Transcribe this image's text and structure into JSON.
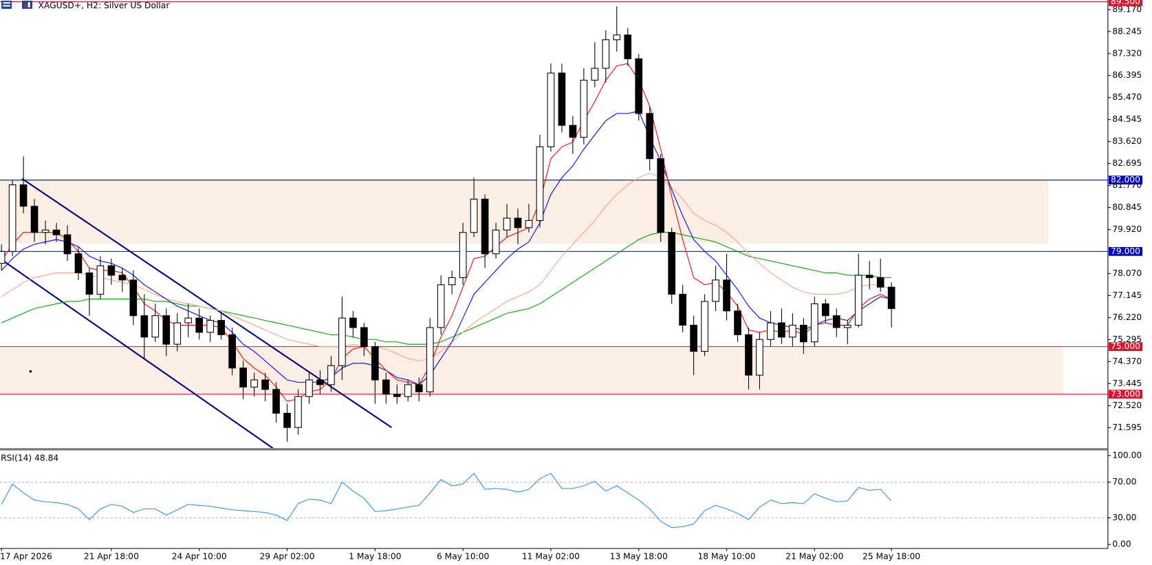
{
  "chart_data": [
    {
      "type": "candlestick",
      "title": "XAGUSD+, H2:  Silver US Dollar",
      "categories": [
        "17 Apr 2026",
        null,
        null,
        null,
        null,
        null,
        null,
        null,
        null,
        null,
        "21 Apr 18:00",
        null,
        null,
        null,
        null,
        null,
        null,
        null,
        "24 Apr 10:00",
        null,
        null,
        null,
        null,
        null,
        null,
        null,
        "29 Apr 02:00",
        null,
        null,
        null,
        null,
        null,
        null,
        null,
        "1 May 18:00",
        null,
        null,
        null,
        null,
        null,
        null,
        null,
        "6 May 10:00",
        null,
        null,
        null,
        null,
        null,
        null,
        null,
        "11 May 02:00",
        null,
        null,
        null,
        null,
        null,
        null,
        null,
        "13 May 18:00",
        null,
        null,
        null,
        null,
        null,
        null,
        null,
        "18 May 10:00",
        null,
        null,
        null,
        null,
        null,
        null,
        null,
        "21 May 02:00",
        null,
        null,
        null,
        null,
        null,
        null,
        "25 May 18:00"
      ],
      "open": [
        78.5,
        79.0,
        81.8,
        80.9,
        79.8,
        79.9,
        79.7,
        78.9,
        78.1,
        77.2,
        78.4,
        78.0,
        77.8,
        76.3,
        75.4,
        76.3,
        75.1,
        76.0,
        76.2,
        75.6,
        76.1,
        75.5,
        74.1,
        73.3,
        73.6,
        73.2,
        72.2,
        71.6,
        72.9,
        73.6,
        73.4,
        74.2,
        76.2,
        75.8,
        75.0,
        73.6,
        73.0,
        72.9,
        73.4,
        73.1,
        75.8,
        77.6,
        77.9,
        79.8,
        81.2,
        78.9,
        79.9,
        80.4,
        80.0,
        80.3,
        83.4,
        86.5,
        84.3,
        83.8,
        86.2,
        86.7,
        87.9,
        88.1,
        87.1,
        84.8,
        82.9,
        79.8,
        77.2,
        75.9,
        74.8,
        76.9,
        77.8,
        76.5,
        75.5,
        73.8,
        75.3,
        76.0,
        75.4,
        75.9,
        75.2,
        76.8,
        76.3,
        75.8,
        75.9,
        78.0,
        77.9,
        77.5
      ],
      "high": [
        79.3,
        82.0,
        83.0,
        81.2,
        80.3,
        80.2,
        80.1,
        79.2,
        78.3,
        78.8,
        78.7,
        78.3,
        78.2,
        77.2,
        76.8,
        76.6,
        76.4,
        76.8,
        76.6,
        76.3,
        76.4,
        75.8,
        74.4,
        73.9,
        73.9,
        73.5,
        72.6,
        73.2,
        73.9,
        74.0,
        74.6,
        77.1,
        76.5,
        76.0,
        75.2,
        73.9,
        73.4,
        73.6,
        73.7,
        76.2,
        78.0,
        78.2,
        80.2,
        82.1,
        81.4,
        80.2,
        81.0,
        80.8,
        81.0,
        83.9,
        86.9,
        86.9,
        84.7,
        86.7,
        87.8,
        88.3,
        89.3,
        88.4,
        87.3,
        85.1,
        83.1,
        80.0,
        77.6,
        76.3,
        77.2,
        78.4,
        78.9,
        76.8,
        75.8,
        75.6,
        76.5,
        76.6,
        76.4,
        76.2,
        77.1,
        77.0,
        76.6,
        76.1,
        78.9,
        78.6,
        78.7,
        77.7
      ],
      "low": [
        78.2,
        78.8,
        80.6,
        79.4,
        79.3,
        79.4,
        78.6,
        77.8,
        76.3,
        77.0,
        77.6,
        77.3,
        75.9,
        74.5,
        75.2,
        74.6,
        74.8,
        75.4,
        75.3,
        75.2,
        75.3,
        73.8,
        72.8,
        72.9,
        72.7,
        71.8,
        71.0,
        71.3,
        72.6,
        73.0,
        73.1,
        73.6,
        75.4,
        74.6,
        72.6,
        72.6,
        72.6,
        72.7,
        72.7,
        72.9,
        75.5,
        77.2,
        77.6,
        79.6,
        78.3,
        78.7,
        79.6,
        79.3,
        79.8,
        80.0,
        83.2,
        84.0,
        83.1,
        83.5,
        85.9,
        86.1,
        87.4,
        86.8,
        84.5,
        82.4,
        79.4,
        76.8,
        75.6,
        73.8,
        74.6,
        76.5,
        76.1,
        75.2,
        73.2,
        73.2,
        75.0,
        75.1,
        75.0,
        74.7,
        75.0,
        76.0,
        75.4,
        75.1,
        75.8,
        77.4,
        77.3,
        75.8
      ],
      "close": [
        79.0,
        81.8,
        80.9,
        79.8,
        79.9,
        79.7,
        78.9,
        78.1,
        77.2,
        78.4,
        78.0,
        77.8,
        76.3,
        75.4,
        76.3,
        75.1,
        76.0,
        76.2,
        75.6,
        76.1,
        75.5,
        74.1,
        73.3,
        73.6,
        73.2,
        72.2,
        71.6,
        72.9,
        73.6,
        73.4,
        74.2,
        76.2,
        75.8,
        75.0,
        73.6,
        73.0,
        72.9,
        73.4,
        73.1,
        75.8,
        77.6,
        77.9,
        79.8,
        81.2,
        78.9,
        79.9,
        80.4,
        80.0,
        80.3,
        83.4,
        86.5,
        84.3,
        83.8,
        86.2,
        86.7,
        87.9,
        88.1,
        87.1,
        84.8,
        82.9,
        79.8,
        77.2,
        75.9,
        74.8,
        76.9,
        77.8,
        76.5,
        75.5,
        73.8,
        75.3,
        76.0,
        75.4,
        75.9,
        75.2,
        76.8,
        76.3,
        75.8,
        75.9,
        78.0,
        77.9,
        77.5,
        76.6
      ],
      "up_color": "#ffffff",
      "down_color": "#000000",
      "series": [
        {
          "color": "#00a000",
          "values": [
            76.0,
            76.2,
            76.4,
            76.6,
            76.7,
            76.8,
            76.9,
            76.9,
            77.0,
            77.0,
            77.0,
            77.0,
            77.0,
            77.0,
            76.9,
            76.9,
            76.8,
            76.7,
            76.7,
            76.6,
            76.5,
            76.4,
            76.3,
            76.2,
            76.1,
            76.0,
            75.9,
            75.8,
            75.7,
            75.6,
            75.5,
            75.5,
            75.4,
            75.3,
            75.3,
            75.2,
            75.2,
            75.1,
            75.1,
            75.1,
            75.2,
            75.4,
            75.6,
            75.8,
            76.0,
            76.2,
            76.4,
            76.5,
            76.6,
            76.8,
            77.1,
            77.4,
            77.7,
            78.0,
            78.3,
            78.6,
            78.9,
            79.2,
            79.5,
            79.7,
            79.8,
            79.8,
            79.7,
            79.6,
            79.5,
            79.4,
            79.2,
            79.0,
            78.8,
            78.7,
            78.6,
            78.5,
            78.4,
            78.3,
            78.2,
            78.1,
            78.1,
            78.0,
            78.0,
            78.0,
            77.9,
            77.9
          ]
        },
        {
          "color": "#ff9f80",
          "values": [
            77.1,
            77.4,
            77.7,
            77.9,
            78.0,
            78.1,
            78.1,
            78.1,
            78.0,
            77.9,
            77.8,
            77.7,
            77.6,
            77.4,
            77.2,
            77.0,
            76.9,
            76.8,
            76.7,
            76.6,
            76.5,
            76.3,
            76.1,
            75.9,
            75.7,
            75.5,
            75.3,
            75.2,
            75.1,
            75.0,
            75.0,
            75.0,
            75.1,
            75.0,
            75.0,
            74.9,
            74.7,
            74.5,
            74.4,
            74.5,
            74.8,
            75.2,
            75.6,
            76.0,
            76.3,
            76.6,
            76.9,
            77.1,
            77.3,
            77.6,
            78.2,
            78.8,
            79.3,
            79.8,
            80.3,
            80.9,
            81.4,
            81.8,
            82.1,
            82.3,
            82.1,
            81.7,
            81.2,
            80.6,
            80.3,
            80.1,
            79.8,
            79.4,
            78.9,
            78.5,
            78.1,
            77.8,
            77.5,
            77.3,
            77.2,
            77.2,
            77.2,
            77.3,
            77.5,
            77.6,
            77.6,
            77.4
          ]
        },
        {
          "color": "#0000ff",
          "values": [
            78.2,
            78.7,
            79.1,
            79.3,
            79.4,
            79.5,
            79.4,
            79.2,
            78.8,
            78.6,
            78.5,
            78.3,
            78.0,
            77.6,
            77.3,
            77.0,
            76.7,
            76.5,
            76.3,
            76.1,
            76.0,
            75.6,
            75.1,
            74.8,
            74.4,
            74.0,
            73.6,
            73.5,
            73.5,
            73.5,
            73.7,
            74.1,
            74.3,
            74.3,
            74.2,
            74.0,
            73.7,
            73.6,
            73.4,
            73.8,
            74.5,
            75.2,
            76.2,
            77.2,
            77.7,
            78.2,
            78.7,
            79.1,
            79.4,
            80.2,
            81.4,
            82.1,
            82.6,
            83.3,
            83.9,
            84.5,
            84.8,
            84.8,
            84.9,
            83.8,
            82.8,
            81.6,
            80.5,
            79.5,
            79.0,
            78.6,
            78.0,
            77.4,
            76.7,
            76.2,
            76.0,
            75.9,
            75.8,
            75.7,
            75.9,
            76.1,
            76.2,
            76.1,
            76.5,
            76.8,
            77.1,
            77.0
          ]
        },
        {
          "color": "#ff0000",
          "values": [
            78.6,
            79.3,
            79.8,
            79.8,
            79.8,
            79.8,
            79.5,
            79.0,
            78.3,
            78.2,
            78.2,
            78.1,
            77.5,
            76.8,
            76.5,
            76.1,
            75.9,
            75.9,
            75.9,
            75.9,
            75.8,
            75.2,
            74.5,
            74.1,
            73.8,
            73.3,
            72.7,
            72.8,
            73.1,
            73.2,
            73.6,
            74.5,
            74.9,
            75.0,
            74.5,
            74.0,
            73.6,
            73.5,
            73.4,
            74.2,
            75.4,
            76.3,
            77.5,
            78.7,
            78.8,
            79.2,
            79.6,
            79.8,
            80.0,
            81.1,
            82.9,
            83.4,
            83.6,
            84.5,
            85.3,
            86.2,
            86.8,
            86.9,
            86.2,
            85.1,
            83.3,
            81.3,
            79.5,
            77.9,
            77.6,
            77.7,
            77.3,
            76.7,
            75.7,
            75.6,
            75.7,
            75.6,
            75.7,
            75.5,
            75.9,
            76.0,
            75.9,
            75.9,
            76.6,
            77.0,
            77.2,
            77.0
          ]
        }
      ],
      "xlim": [
        -0.134,
        100.7
      ],
      "ylim": [
        70.73,
        89.57
      ],
      "yticks": [
        {
          "value": 89.17,
          "label": "89.170"
        },
        {
          "value": 88.245,
          "label": "88.245"
        },
        {
          "value": 87.32,
          "label": "87.320"
        },
        {
          "value": 86.395,
          "label": "86.395"
        },
        {
          "value": 85.47,
          "label": "85.470"
        },
        {
          "value": 84.545,
          "label": "84.545"
        },
        {
          "value": 83.62,
          "label": "83.620"
        },
        {
          "value": 82.695,
          "label": "82.695"
        },
        {
          "value": 81.77,
          "label": "81.770"
        },
        {
          "value": 80.845,
          "label": "80.845"
        },
        {
          "value": 79.92,
          "label": "79.920"
        },
        {
          "value": 78.07,
          "label": "78.070"
        },
        {
          "value": 77.145,
          "label": "77.145"
        },
        {
          "value": 76.22,
          "label": "76.220"
        },
        {
          "value": 75.295,
          "label": "75.295"
        },
        {
          "value": 74.37,
          "label": "74.370"
        },
        {
          "value": 73.445,
          "label": "73.445"
        },
        {
          "value": 72.52,
          "label": "72.520"
        },
        {
          "value": 71.595,
          "label": "71.595"
        }
      ],
      "zones": [
        {
          "ylim": [
            79.32,
            82.0
          ],
          "xlim": [
            -0.134,
            95.3
          ],
          "color": "#fbeee4"
        },
        {
          "ylim": [
            73.0,
            75.0
          ],
          "xlim": [
            -0.134,
            96.6
          ],
          "color": "#fbeee4"
        }
      ],
      "levels": [
        {
          "value": 89.5,
          "label": "89.500",
          "color": "#e0102f"
        },
        {
          "value": 82.0,
          "label": "82.000",
          "color": "#0000c8"
        },
        {
          "value": 79.0,
          "label": "79.000",
          "color": "#0000c8"
        },
        {
          "value": 75.0,
          "label": "75.000",
          "color": "#e0102f"
        },
        {
          "value": 73.0,
          "label": "73.000",
          "color": "#e0102f"
        }
      ],
      "trendlines": [
        {
          "x": [
            1.87,
            35.5
          ],
          "y": [
            82.06,
            71.6
          ],
          "color": "#000080"
        },
        {
          "x": [
            -0.134,
            24.7
          ],
          "y": [
            78.7,
            70.73
          ],
          "color": "#000080"
        }
      ]
    },
    {
      "type": "line",
      "title": "RSI(14) 48.84",
      "values": [
        45,
        68,
        58,
        50,
        48,
        47,
        45,
        40,
        28,
        40,
        45,
        43,
        36,
        40,
        40,
        33,
        39,
        45,
        44,
        43,
        41,
        39,
        38,
        37,
        36,
        33,
        27,
        46,
        51,
        50,
        46,
        70,
        60,
        52,
        37,
        38,
        40,
        42,
        44,
        58,
        73,
        66,
        68,
        80,
        62,
        63,
        62,
        59,
        62,
        74,
        80,
        63,
        63,
        66,
        71,
        60,
        66,
        58,
        50,
        40,
        26,
        19,
        20,
        23,
        38,
        44,
        40,
        35,
        28,
        42,
        50,
        46,
        47,
        46,
        57,
        52,
        48,
        49,
        64,
        61,
        62,
        48.84
      ],
      "color": "#2a8ff0",
      "ylim": [
        -4.1,
        105
      ],
      "yticks": [
        {
          "value": 100,
          "label": "100.00"
        },
        {
          "value": 70,
          "label": "70.00"
        },
        {
          "value": 30,
          "label": "30.00"
        },
        {
          "value": 0,
          "label": "0.00"
        }
      ],
      "levels": [
        70,
        30
      ]
    }
  ]
}
